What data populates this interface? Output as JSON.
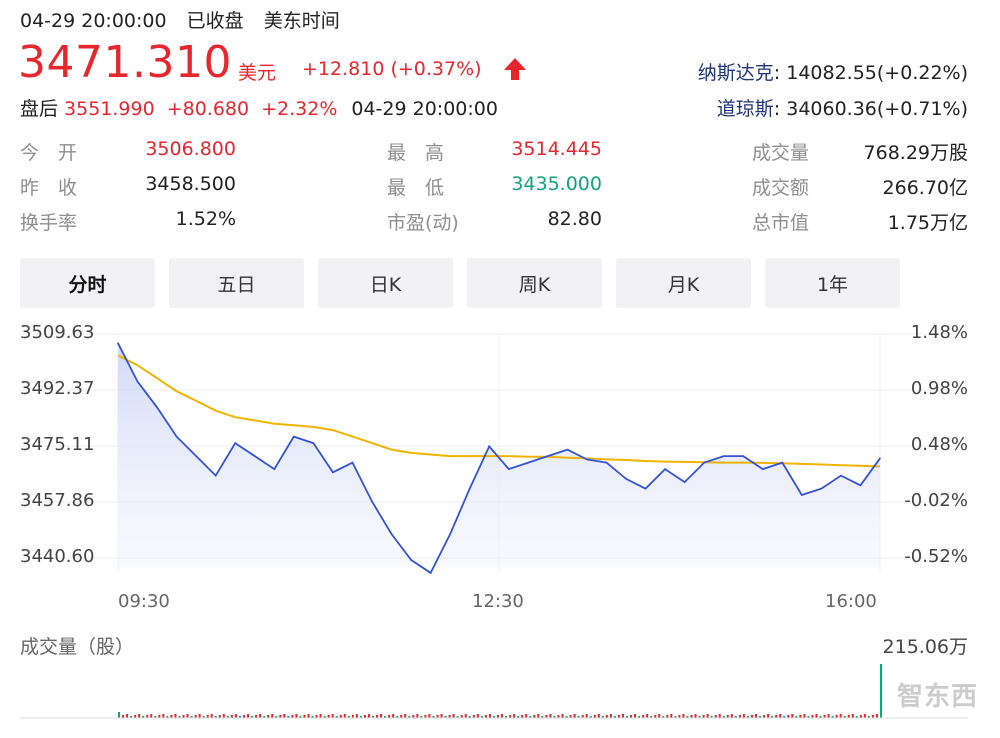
{
  "status": {
    "datetime": "04-29 20:00:00",
    "market_status": "已收盘",
    "timezone": "美东时间"
  },
  "quote": {
    "price": "3471.310",
    "currency": "美元",
    "change": "+12.810 (+0.37%)",
    "direction_icon": "arrow-up-icon",
    "after_hours_label": "盘后",
    "after_price": "3551.990",
    "after_change": "+80.680",
    "after_pct": "+2.32%",
    "after_time": "04-29 20:00:00"
  },
  "indices": [
    {
      "name": "纳斯达克",
      "value": ": 14082.55(+0.22%)"
    },
    {
      "name": "道琼斯",
      "value": ": 34060.36(+0.71%)"
    }
  ],
  "stats": [
    {
      "label": "今　开",
      "value": "3506.800",
      "tone": "red"
    },
    {
      "label": "最　高",
      "value": "3514.445",
      "tone": "red"
    },
    {
      "label": "成交量",
      "value": "768.29万股",
      "tone": "plain"
    },
    {
      "label": "昨　收",
      "value": "3458.500",
      "tone": "plain"
    },
    {
      "label": "最　低",
      "value": "3435.000",
      "tone": "green"
    },
    {
      "label": "成交额",
      "value": "266.70亿",
      "tone": "plain"
    },
    {
      "label": "换手率",
      "value": "1.52%",
      "tone": "plain"
    },
    {
      "label": "市盈(动)",
      "value": "82.80",
      "tone": "plain"
    },
    {
      "label": "总市值",
      "value": "1.75万亿",
      "tone": "plain"
    }
  ],
  "tabs": [
    "分时",
    "五日",
    "日K",
    "周K",
    "月K",
    "1年"
  ],
  "active_tab": "分时",
  "chart": {
    "y_left": [
      "3509.63",
      "3492.37",
      "3475.11",
      "3457.86",
      "3440.60"
    ],
    "y_right": [
      "1.48%",
      "0.98%",
      "0.48%",
      "-0.02%",
      "-0.52%"
    ],
    "x_labels": [
      "09:30",
      "12:30",
      "16:00"
    ]
  },
  "volume": {
    "title": "成交量（股）",
    "max_label": "215.06万"
  },
  "watermark": "智东西",
  "colors": {
    "up": "#e8262d",
    "down": "#12a37a",
    "price_line": "#3553d6",
    "avg_line": "#f0b400",
    "index_name": "#20357a"
  },
  "chart_data": {
    "type": "line",
    "x": [
      "09:30",
      "09:40",
      "09:50",
      "10:00",
      "10:10",
      "10:20",
      "10:30",
      "10:40",
      "10:50",
      "11:00",
      "11:10",
      "11:20",
      "11:30",
      "11:40",
      "11:50",
      "12:00",
      "12:10",
      "12:20",
      "12:30",
      "12:40",
      "12:50",
      "13:00",
      "13:10",
      "13:20",
      "13:30",
      "13:40",
      "13:50",
      "14:00",
      "14:10",
      "14:20",
      "14:30",
      "14:40",
      "14:50",
      "15:00",
      "15:10",
      "15:20",
      "15:30",
      "15:40",
      "15:50",
      "16:00"
    ],
    "series": [
      {
        "values": [
          3506.8,
          3495.0,
          3487.0,
          3478.0,
          3472.0,
          3466.0,
          3476.0,
          3472.0,
          3468.0,
          3478.0,
          3476.0,
          3467.0,
          3470.0,
          3458.0,
          3448.0,
          3440.0,
          3436.0,
          3448.0,
          3462.0,
          3475.0,
          3468.0,
          3470.0,
          3472.0,
          3474.0,
          3471.0,
          3470.0,
          3465.0,
          3462.0,
          3468.0,
          3464.0,
          3470.0,
          3472.0,
          3472.0,
          3468.0,
          3470.0,
          3460.0,
          3462.0,
          3466.0,
          3463.0,
          3471.31
        ]
      },
      {
        "values": [
          3503.0,
          3500.0,
          3496.0,
          3492.0,
          3489.0,
          3486.0,
          3484.0,
          3483.0,
          3482.0,
          3481.5,
          3481.0,
          3480.0,
          3478.0,
          3476.0,
          3474.0,
          3473.0,
          3472.5,
          3472.0,
          3472.0,
          3472.0,
          3472.0,
          3471.8,
          3471.8,
          3471.5,
          3471.3,
          3471.0,
          3470.8,
          3470.5,
          3470.3,
          3470.2,
          3470.1,
          3470.0,
          3470.0,
          3469.9,
          3469.8,
          3469.6,
          3469.4,
          3469.2,
          3469.0,
          3468.8
        ]
      }
    ],
    "ylim": [
      3440.6,
      3509.63
    ],
    "y_ticks": [
      3509.63,
      3492.37,
      3475.11,
      3457.86,
      3440.6
    ],
    "x_ticks": [
      "09:30",
      "12:30",
      "16:00"
    ],
    "grid": true
  }
}
